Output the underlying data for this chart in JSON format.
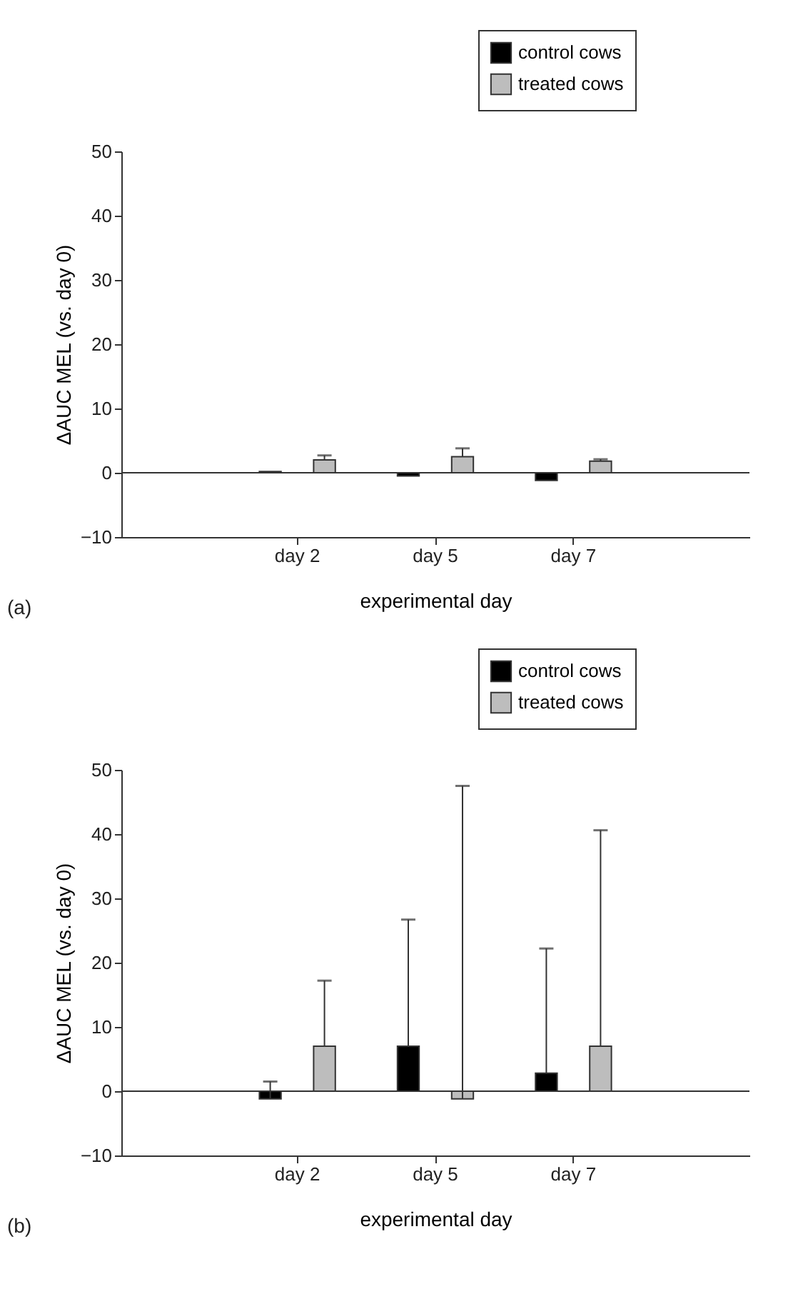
{
  "chart_data": [
    {
      "type": "bar",
      "categories": [
        "day 2",
        "day 5",
        "day 7"
      ],
      "xlabel": "experimental day",
      "ylabel": "ΔAUC MEL (vs. day 0)",
      "series": [
        {
          "name": "control cows",
          "color": "#000000",
          "values": [
            0.2,
            -0.5,
            -1.2
          ],
          "errors": [
            null,
            null,
            null
          ]
        },
        {
          "name": "treated cows",
          "color": "#bdbdbd",
          "values": [
            2.0,
            2.5,
            1.8
          ],
          "errors": [
            [
              2.0,
              2.7
            ],
            [
              2.5,
              3.8
            ],
            [
              1.8,
              2.1
            ]
          ]
        }
      ],
      "ylim": [
        -10,
        50
      ],
      "yticks": [
        -10,
        0,
        10,
        20,
        30,
        40,
        50
      ],
      "grid": false,
      "legend": "top right",
      "ref_lines": [
        {
          "axis": "y",
          "value": 0
        }
      ],
      "annotations": [
        "(a)"
      ]
    },
    {
      "type": "bar",
      "categories": [
        "day 2",
        "day 5",
        "day 7"
      ],
      "xlabel": "experimental day",
      "ylabel": "ΔAUC MEL (vs. day 0)",
      "series": [
        {
          "name": "control cows",
          "color": "#000000",
          "values": [
            -1.2,
            7.0,
            2.8
          ],
          "errors": [
            [
              -1.2,
              1.5
            ],
            [
              7.0,
              26.7
            ],
            [
              2.8,
              22.2
            ]
          ]
        },
        {
          "name": "treated cows",
          "color": "#bdbdbd",
          "values": [
            7.0,
            -1.2,
            7.0
          ],
          "errors": [
            [
              7.0,
              17.2
            ],
            [
              -1.2,
              47.5
            ],
            [
              7.0,
              40.6
            ]
          ]
        }
      ],
      "ylim": [
        -10,
        50
      ],
      "yticks": [
        -10,
        0,
        10,
        20,
        30,
        40,
        50
      ],
      "grid": false,
      "legend": "top right",
      "ref_lines": [
        {
          "axis": "y",
          "value": 0
        }
      ],
      "annotations": [
        "(b)"
      ]
    }
  ]
}
